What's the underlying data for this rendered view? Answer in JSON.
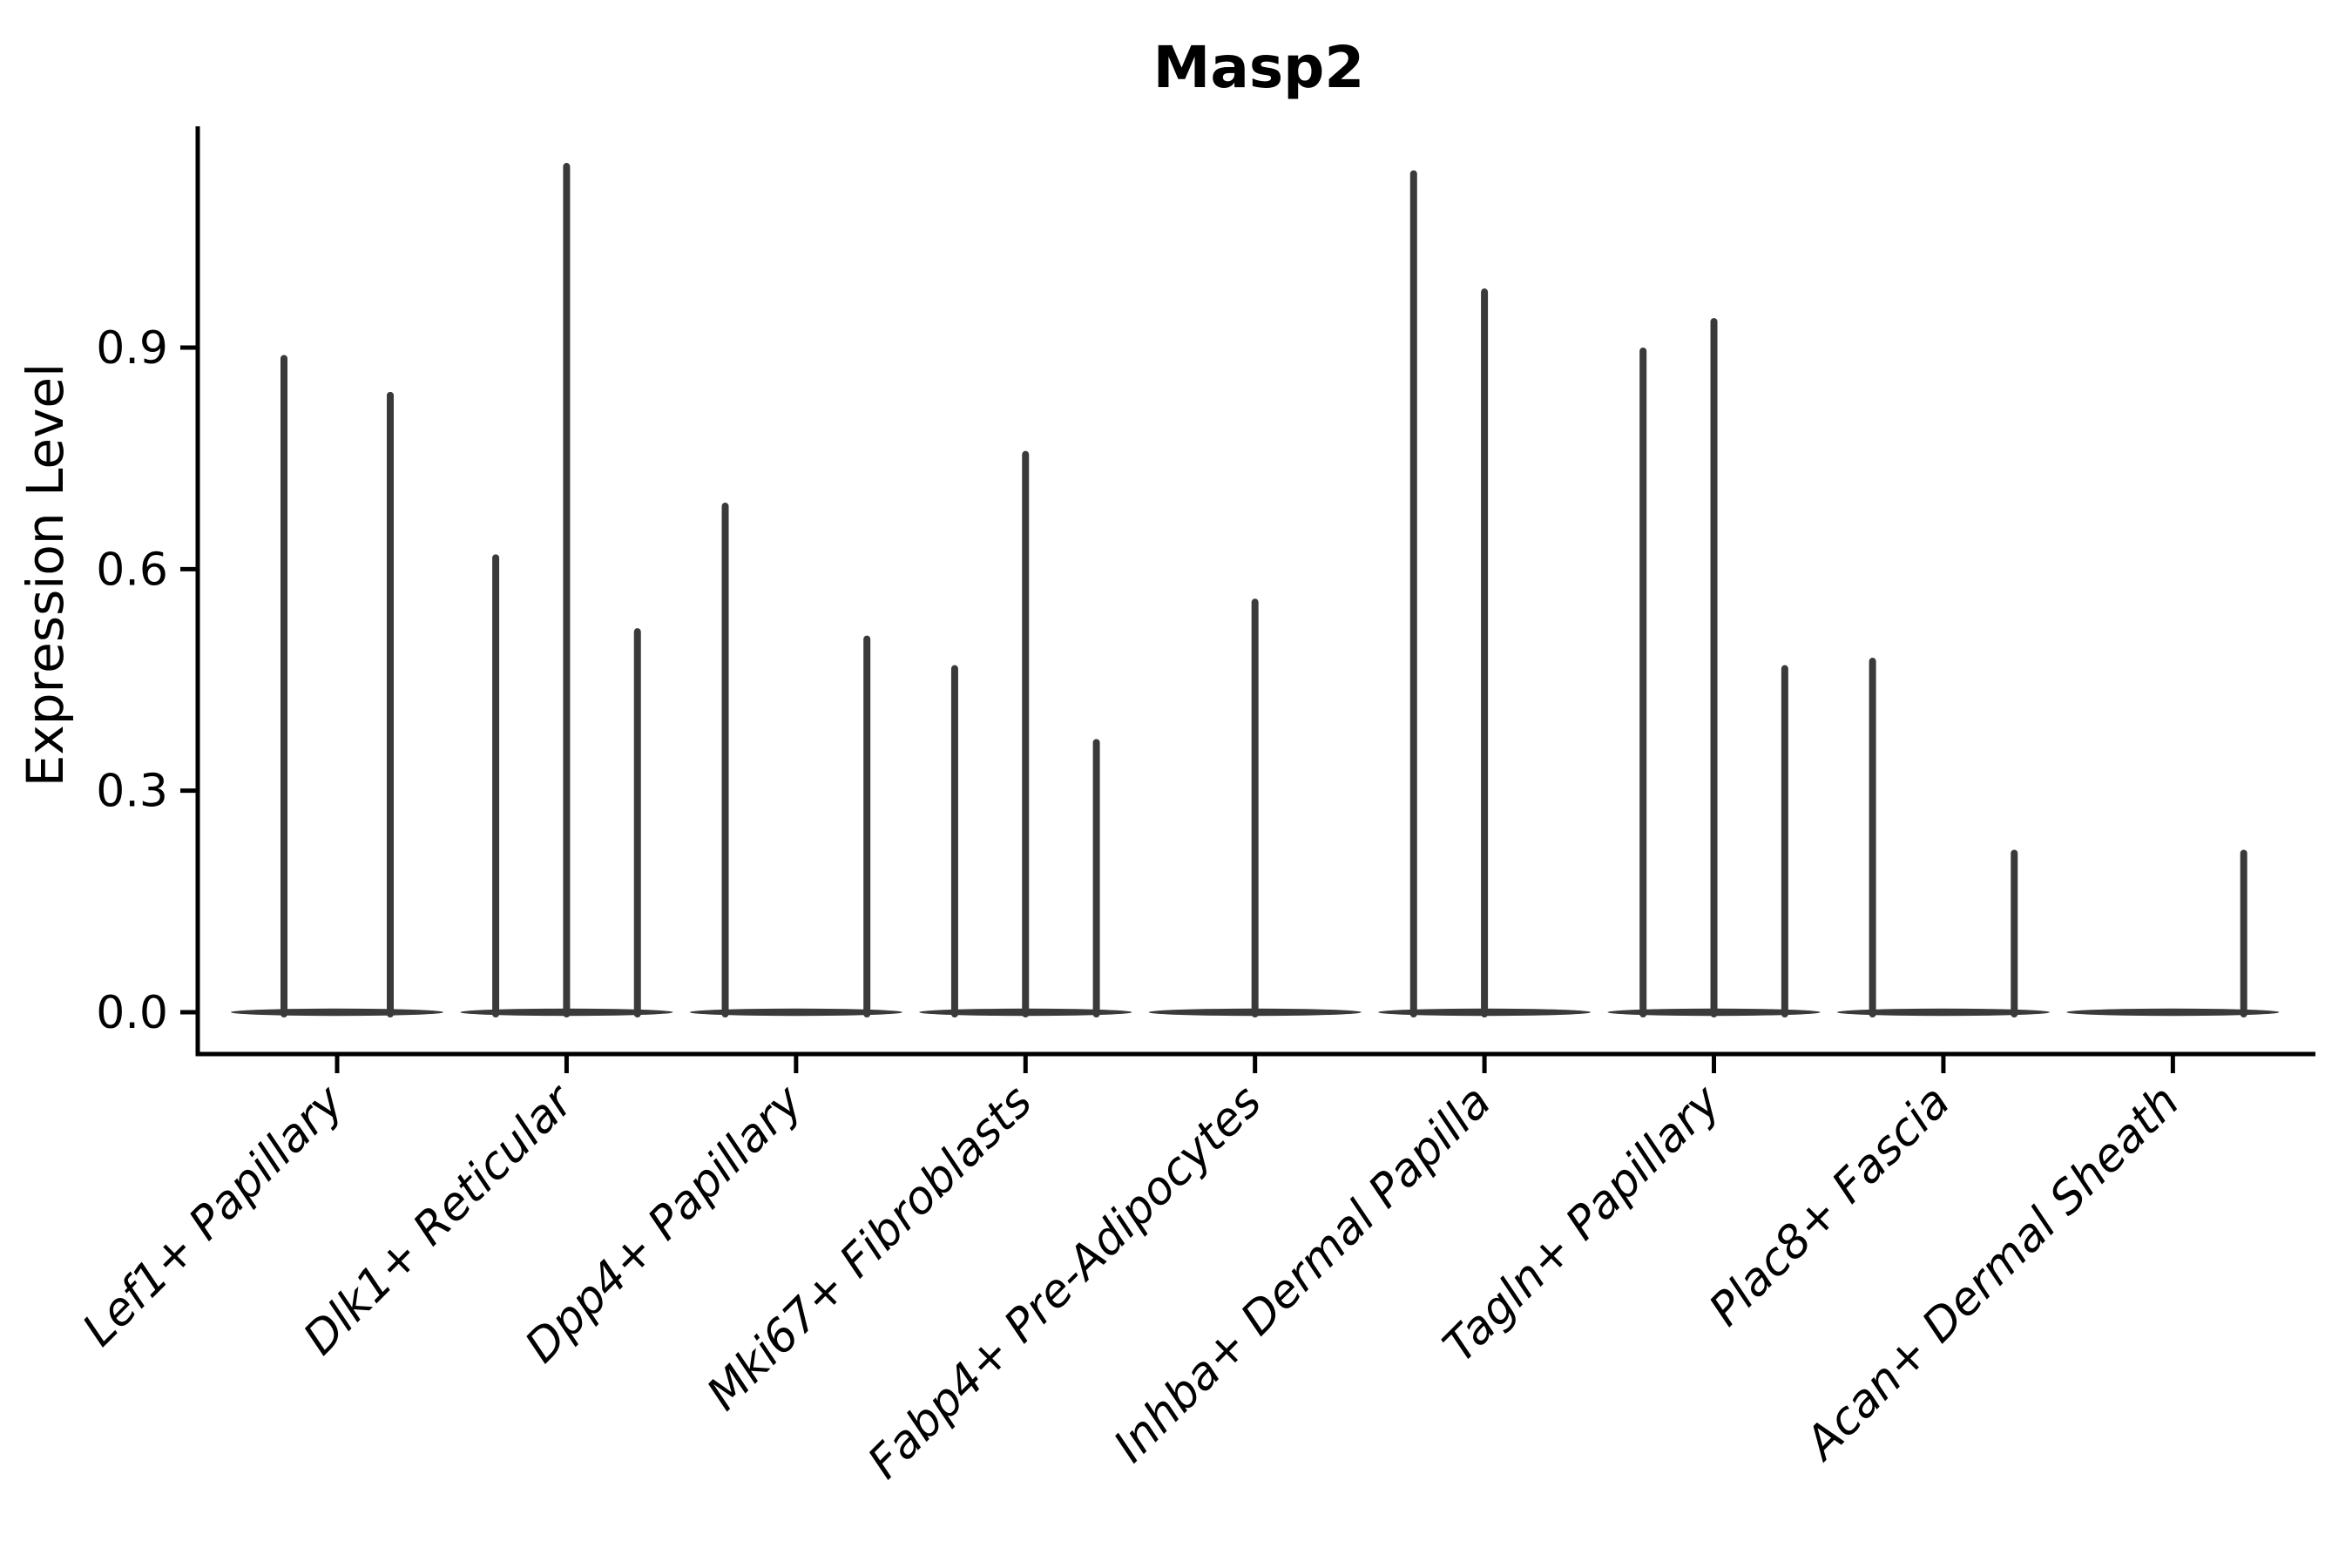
{
  "chart_data": {
    "type": "violin",
    "title": "Masp2",
    "ylabel": "Expression Level",
    "xlabel": "",
    "ytick_values": [
      0.0,
      0.3,
      0.6,
      0.9
    ],
    "ytick_labels": [
      "0.0",
      "0.3",
      "0.6",
      "0.9"
    ],
    "ylim": [
      -0.057,
      1.2
    ],
    "grid": false,
    "legend": "none",
    "categories": [
      "Lef1+ Papillary",
      "Dlk1+ Reticular",
      "Dpp4+ Papillary",
      "Mki67+ Fibroblasts",
      "Fabp4+ Pre-Adipocytes",
      "Inhba+ Dermal Papilla",
      "Tagln+ Papillary",
      "Plac8+ Fascia",
      "Acan+ Dermal Sheath"
    ],
    "series_note": "Each category holds thin sub-violins; value = max expression tail height, 0 = flat violin at baseline",
    "max_expression": [
      [
        0.89,
        0.84
      ],
      [
        0.62,
        1.15,
        0.52
      ],
      [
        0.69,
        0.0,
        0.51
      ],
      [
        0.47,
        0.76,
        0.37
      ],
      [
        0.0,
        0.56,
        0.0
      ],
      [
        1.14,
        0.98,
        0.0
      ],
      [
        0.9,
        0.94,
        0.47
      ],
      [
        0.48,
        0.0,
        0.22
      ],
      [
        0.0,
        0.0,
        0.22
      ]
    ],
    "colors": {
      "violin": "#3a3a3a",
      "axis": "#000000",
      "text": "#000000",
      "background": "#ffffff"
    }
  }
}
